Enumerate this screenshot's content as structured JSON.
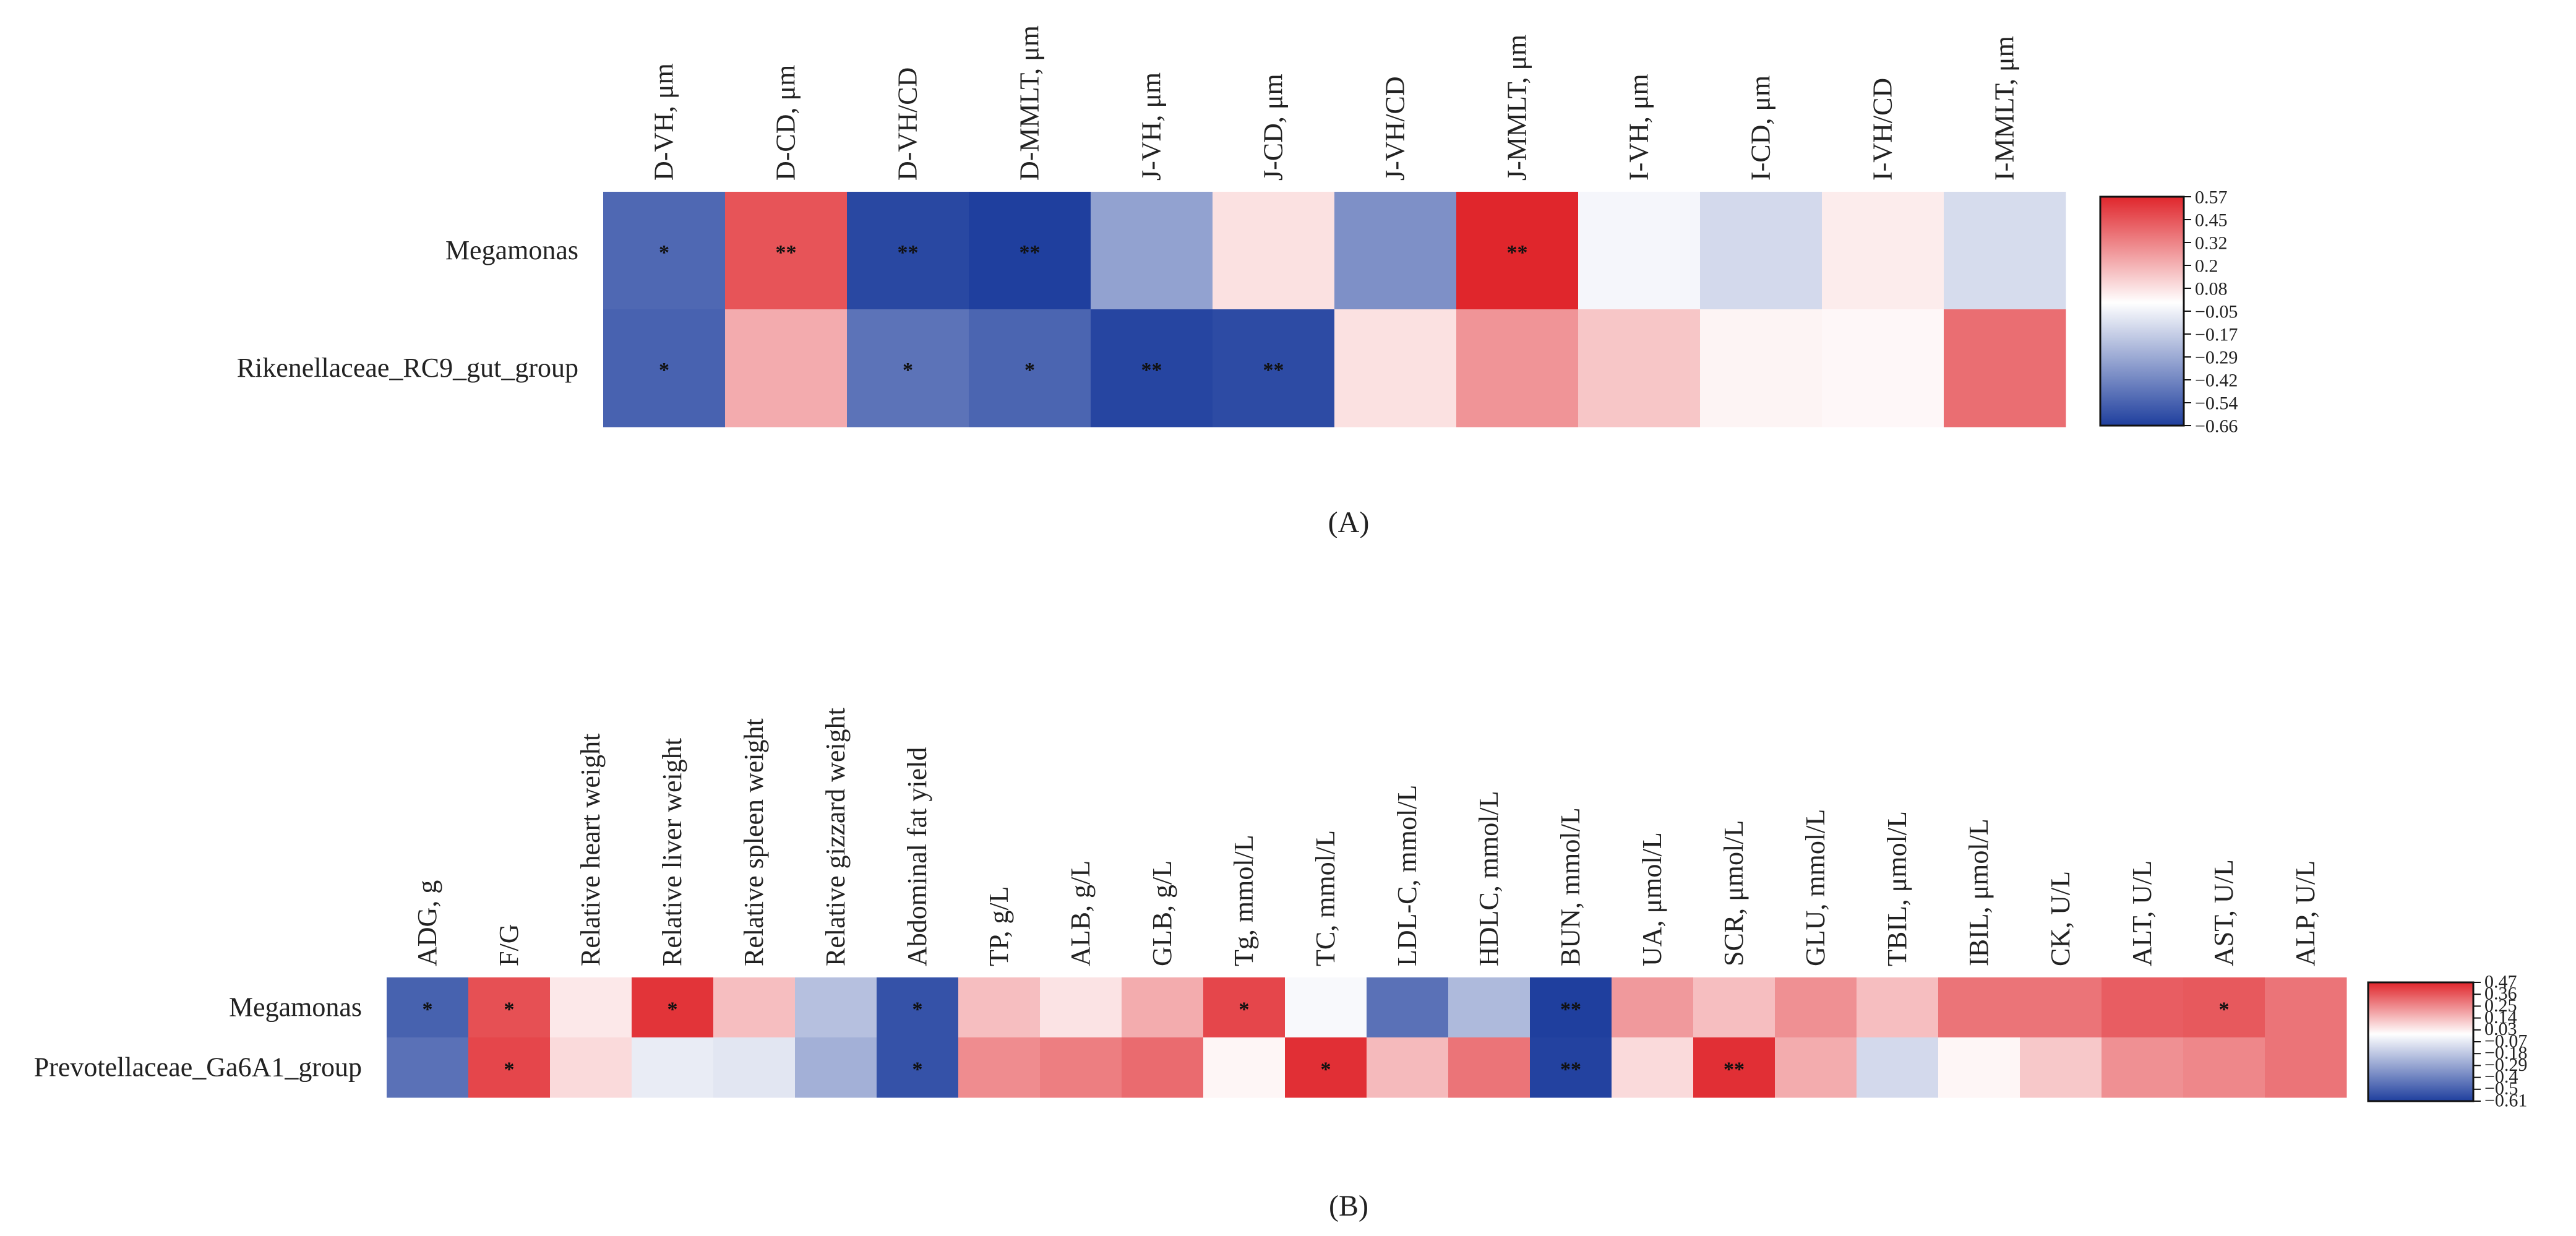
{
  "chart_data": [
    {
      "type": "heatmap",
      "panel_label": "(A)",
      "rows": [
        "Megamonas",
        "Rikenellaceae_RC9_gut_group"
      ],
      "columns": [
        "D-VH, μm",
        "D-CD, μm",
        "D-VH/CD",
        "D-MMLT, μm",
        "J-VH, μm",
        "J-CD, μm",
        "J-VH/CD",
        "J-MMLT, μm",
        "I-VH, μm",
        "I-CD, μm",
        "I-VH/CD",
        "I-MMLT, μm"
      ],
      "values": [
        [
          -0.52,
          0.45,
          -0.63,
          -0.66,
          -0.32,
          0.08,
          -0.38,
          0.57,
          -0.03,
          -0.13,
          0.05,
          -0.12
        ],
        [
          -0.54,
          0.22,
          -0.48,
          -0.53,
          -0.64,
          -0.62,
          0.08,
          0.28,
          0.15,
          0.03,
          0.02,
          0.38
        ]
      ],
      "significance": [
        [
          "*",
          "**",
          "**",
          "**",
          "",
          "",
          "",
          "**",
          "",
          "",
          "",
          ""
        ],
        [
          "*",
          "",
          "*",
          "*",
          "**",
          "**",
          "",
          "",
          "",
          "",
          "",
          ""
        ]
      ],
      "colorbar": {
        "ticks": [
          "0.57",
          "0.45",
          "0.32",
          "0.2",
          "0.08",
          "−0.05",
          "−0.17",
          "−0.29",
          "−0.42",
          "−0.54",
          "−0.66"
        ],
        "min": -0.66,
        "max": 0.57,
        "low_color": "#1f3f9e",
        "mid_color": "#ffffff",
        "high_color": "#e0262c"
      }
    },
    {
      "type": "heatmap",
      "panel_label": "(B)",
      "rows": [
        "Megamonas",
        "Prevotellaceae_Ga6A1_group"
      ],
      "columns": [
        "ADG, g",
        "F/G",
        "Relative heart weight",
        "Relative liver weight",
        "Relative spleen weight",
        "Relative gizzard weight",
        "Abdominal fat yield",
        "TP, g/L",
        "ALB, g/L",
        "GLB, g/L",
        "Tg, mmol/L",
        "TC, mmol/L",
        "LDL-C, mmol/L",
        "HDLC, mmol/L",
        "BUN, mmol/L",
        "UA, μmol/L",
        "SCR, μmol/L",
        "GLU, mmol/L",
        "TBIL, μmol/L",
        "IBIL, μmol/L",
        "CK, U/L",
        "ALT, U/L",
        "AST, U/L",
        "ALP, U/L"
      ],
      "values": [
        [
          -0.5,
          0.38,
          0.05,
          0.44,
          0.14,
          -0.2,
          -0.55,
          0.14,
          0.06,
          0.18,
          0.4,
          -0.02,
          -0.45,
          -0.22,
          -0.61,
          0.22,
          0.14,
          0.24,
          0.14,
          0.3,
          0.3,
          0.35,
          0.36,
          0.3
        ],
        [
          -0.45,
          0.4,
          0.08,
          -0.06,
          -0.08,
          -0.25,
          -0.55,
          0.25,
          0.28,
          0.32,
          0.02,
          0.45,
          0.15,
          0.3,
          -0.6,
          0.08,
          0.45,
          0.18,
          -0.12,
          0.02,
          0.12,
          0.24,
          0.26,
          0.3
        ]
      ],
      "significance": [
        [
          "*",
          "*",
          "",
          "*",
          "",
          "",
          "*",
          "",
          "",
          "",
          "*",
          "",
          "",
          "",
          "**",
          "",
          "",
          "",
          "",
          "",
          "",
          "",
          "*",
          ""
        ],
        [
          "",
          "*",
          "",
          "",
          "",
          "",
          "*",
          "",
          "",
          "",
          "",
          "*",
          "",
          "",
          "**",
          "",
          "**",
          "",
          "",
          "",
          "",
          "",
          "",
          ""
        ]
      ],
      "colorbar": {
        "ticks": [
          "0.47",
          "0.36",
          "0.25",
          "0.14",
          "0.03",
          "−0.07",
          "−0.18",
          "−0.29",
          "−0.4",
          "−0.5",
          "−0.61"
        ],
        "min": -0.61,
        "max": 0.47,
        "low_color": "#1f3f9e",
        "mid_color": "#ffffff",
        "high_color": "#e0262c"
      }
    }
  ]
}
